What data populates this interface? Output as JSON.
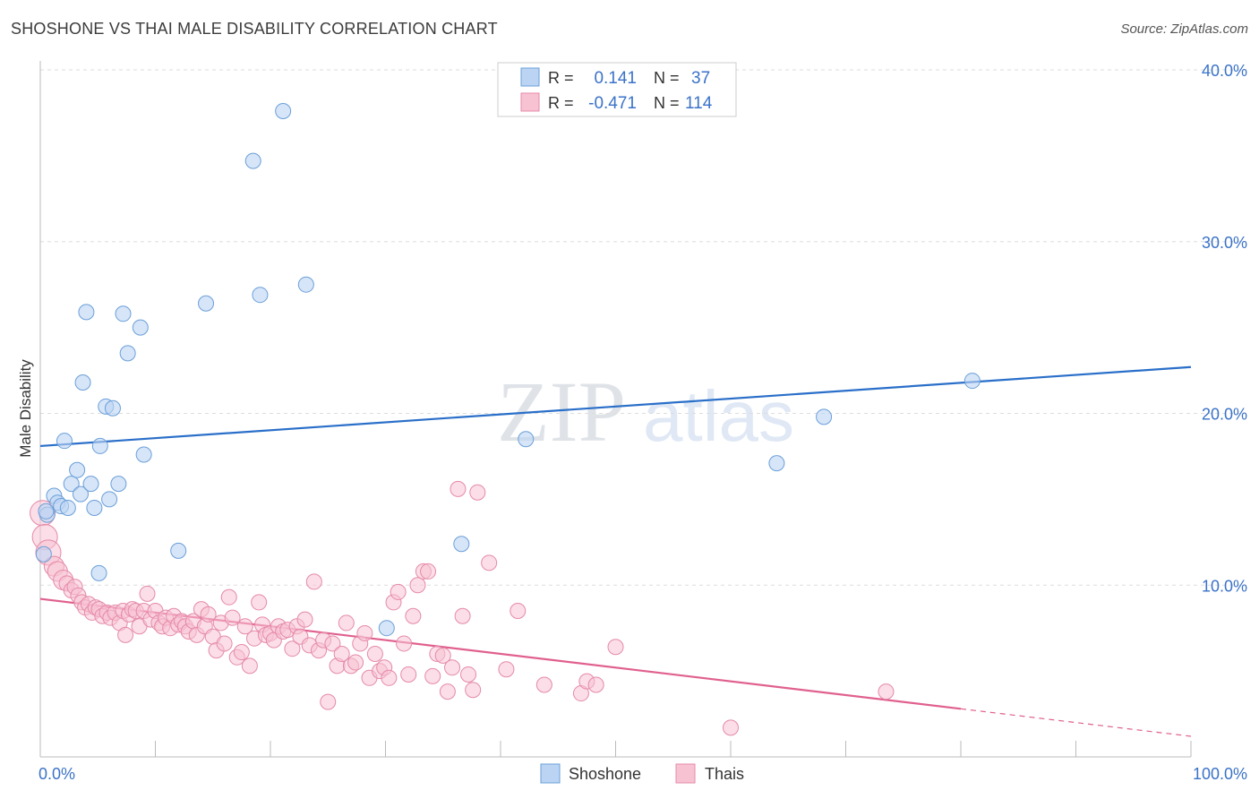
{
  "title": "SHOSHONE VS THAI MALE DISABILITY CORRELATION CHART",
  "source": "Source: ZipAtlas.com",
  "watermark": {
    "zip": "ZIP",
    "atlas": "atlas"
  },
  "colors": {
    "shoshone": "#6a9fd8",
    "shoshone_fill": "#bcd4f3",
    "shoshone_line": "#2a6fc9",
    "thais": "#e58aa8",
    "thais_fill": "#f7c3d3",
    "thais_line": "#e0608e",
    "tick_text": "#3a72c8",
    "grid": "#dddddd"
  },
  "legend_box": {
    "rows": [
      {
        "r_label": "R =",
        "r_value": "0.141",
        "n_label": "N =",
        "n_value": "37"
      },
      {
        "r_label": "R =",
        "r_value": "-0.471",
        "n_label": "N =",
        "n_value": "114"
      }
    ]
  },
  "bottom_legend": {
    "shoshone": "Shoshone",
    "thais": "Thais"
  },
  "chart_data": {
    "type": "scatter",
    "title": "SHOSHONE VS THAI MALE DISABILITY CORRELATION CHART",
    "xlabel": "",
    "ylabel": "Male Disability",
    "xlim": [
      0,
      100
    ],
    "ylim": [
      0,
      40
    ],
    "x_tick_labels": [
      "0.0%",
      "100.0%"
    ],
    "y_ticks": [
      10,
      20,
      30,
      40
    ],
    "y_tick_labels": [
      "10.0%",
      "20.0%",
      "30.0%",
      "40.0%"
    ],
    "series": [
      {
        "name": "Shoshone",
        "r": 0.141,
        "n": 37,
        "trend": {
          "x": [
            0,
            100
          ],
          "y": [
            18.1,
            22.7
          ]
        },
        "points": [
          [
            0.3,
            11.8
          ],
          [
            0.6,
            14.1
          ],
          [
            1.2,
            15.2
          ],
          [
            1.5,
            14.8
          ],
          [
            1.8,
            14.6
          ],
          [
            2.1,
            18.4
          ],
          [
            2.4,
            14.5
          ],
          [
            2.7,
            15.9
          ],
          [
            3.2,
            16.7
          ],
          [
            3.5,
            15.3
          ],
          [
            3.7,
            21.8
          ],
          [
            4.0,
            25.9
          ],
          [
            4.4,
            15.9
          ],
          [
            4.7,
            14.5
          ],
          [
            5.1,
            10.7
          ],
          [
            5.2,
            18.1
          ],
          [
            5.7,
            20.4
          ],
          [
            6.0,
            15.0
          ],
          [
            6.3,
            20.3
          ],
          [
            6.8,
            15.9
          ],
          [
            7.2,
            25.8
          ],
          [
            7.6,
            23.5
          ],
          [
            8.7,
            25.0
          ],
          [
            9.0,
            17.6
          ],
          [
            12.0,
            12.0
          ],
          [
            14.4,
            26.4
          ],
          [
            18.5,
            34.7
          ],
          [
            19.1,
            26.9
          ],
          [
            21.1,
            37.6
          ],
          [
            23.1,
            27.5
          ],
          [
            30.1,
            7.5
          ],
          [
            36.6,
            12.4
          ],
          [
            42.2,
            18.5
          ],
          [
            64.0,
            17.1
          ],
          [
            68.1,
            19.8
          ],
          [
            81.0,
            21.9
          ],
          [
            0.5,
            14.3
          ]
        ]
      },
      {
        "name": "Thais",
        "r": -0.471,
        "n": 114,
        "trend": {
          "x": [
            0,
            80
          ],
          "y": [
            9.2,
            2.8
          ]
        },
        "trend_dashed": {
          "x": [
            80,
            100
          ],
          "y": [
            2.8,
            1.2
          ]
        },
        "points": [
          [
            0.2,
            14.2
          ],
          [
            0.4,
            12.8
          ],
          [
            0.7,
            11.9
          ],
          [
            1.2,
            11.1
          ],
          [
            1.5,
            10.8
          ],
          [
            2.0,
            10.3
          ],
          [
            2.3,
            10.1
          ],
          [
            2.7,
            9.7
          ],
          [
            3.0,
            9.9
          ],
          [
            3.3,
            9.4
          ],
          [
            3.6,
            9.0
          ],
          [
            3.9,
            8.7
          ],
          [
            4.2,
            8.9
          ],
          [
            4.5,
            8.4
          ],
          [
            4.8,
            8.7
          ],
          [
            5.1,
            8.6
          ],
          [
            5.4,
            8.2
          ],
          [
            5.8,
            8.4
          ],
          [
            6.1,
            8.1
          ],
          [
            6.5,
            8.4
          ],
          [
            6.9,
            7.8
          ],
          [
            7.2,
            8.5
          ],
          [
            7.4,
            7.1
          ],
          [
            7.7,
            8.3
          ],
          [
            8.0,
            8.6
          ],
          [
            8.3,
            8.5
          ],
          [
            8.6,
            7.6
          ],
          [
            9.0,
            8.5
          ],
          [
            9.3,
            9.5
          ],
          [
            9.6,
            8.0
          ],
          [
            10.0,
            8.5
          ],
          [
            10.3,
            7.8
          ],
          [
            10.6,
            7.6
          ],
          [
            10.9,
            8.1
          ],
          [
            11.3,
            7.5
          ],
          [
            11.6,
            8.2
          ],
          [
            12.0,
            7.7
          ],
          [
            12.3,
            7.9
          ],
          [
            12.6,
            7.6
          ],
          [
            12.9,
            7.3
          ],
          [
            13.3,
            7.9
          ],
          [
            13.6,
            7.1
          ],
          [
            14.0,
            8.6
          ],
          [
            14.3,
            7.6
          ],
          [
            14.6,
            8.3
          ],
          [
            15.0,
            7.0
          ],
          [
            15.3,
            6.2
          ],
          [
            15.7,
            7.8
          ],
          [
            16.0,
            6.6
          ],
          [
            16.4,
            9.3
          ],
          [
            16.7,
            8.1
          ],
          [
            17.1,
            5.8
          ],
          [
            17.5,
            6.1
          ],
          [
            17.8,
            7.6
          ],
          [
            18.2,
            5.3
          ],
          [
            18.6,
            6.9
          ],
          [
            19.0,
            9.0
          ],
          [
            19.3,
            7.7
          ],
          [
            19.6,
            7.1
          ],
          [
            20.0,
            7.2
          ],
          [
            20.3,
            6.8
          ],
          [
            20.7,
            7.6
          ],
          [
            21.1,
            7.3
          ],
          [
            21.5,
            7.4
          ],
          [
            21.9,
            6.3
          ],
          [
            22.3,
            7.6
          ],
          [
            22.6,
            7.0
          ],
          [
            23.0,
            8.0
          ],
          [
            23.4,
            6.5
          ],
          [
            23.8,
            10.2
          ],
          [
            24.2,
            6.2
          ],
          [
            24.6,
            6.8
          ],
          [
            25.0,
            3.2
          ],
          [
            25.4,
            6.6
          ],
          [
            25.8,
            5.3
          ],
          [
            26.2,
            6.0
          ],
          [
            26.6,
            7.8
          ],
          [
            27.0,
            5.3
          ],
          [
            27.4,
            5.5
          ],
          [
            27.8,
            6.6
          ],
          [
            28.2,
            7.2
          ],
          [
            28.6,
            4.6
          ],
          [
            29.1,
            6.0
          ],
          [
            29.5,
            5.0
          ],
          [
            29.9,
            5.2
          ],
          [
            30.3,
            4.6
          ],
          [
            30.7,
            9.0
          ],
          [
            31.1,
            9.6
          ],
          [
            31.6,
            6.6
          ],
          [
            32.0,
            4.8
          ],
          [
            32.4,
            8.2
          ],
          [
            32.8,
            10.0
          ],
          [
            33.3,
            10.8
          ],
          [
            33.7,
            10.8
          ],
          [
            34.1,
            4.7
          ],
          [
            34.5,
            6.0
          ],
          [
            35.0,
            5.9
          ],
          [
            35.4,
            3.8
          ],
          [
            35.8,
            5.2
          ],
          [
            36.3,
            15.6
          ],
          [
            36.7,
            8.2
          ],
          [
            37.2,
            4.8
          ],
          [
            37.6,
            3.9
          ],
          [
            38.0,
            15.4
          ],
          [
            39.0,
            11.3
          ],
          [
            40.5,
            5.1
          ],
          [
            41.5,
            8.5
          ],
          [
            43.8,
            4.2
          ],
          [
            47.0,
            3.7
          ],
          [
            47.5,
            4.4
          ],
          [
            48.3,
            4.2
          ],
          [
            50.0,
            6.4
          ],
          [
            60.0,
            1.7
          ],
          [
            73.5,
            3.8
          ]
        ]
      }
    ]
  }
}
